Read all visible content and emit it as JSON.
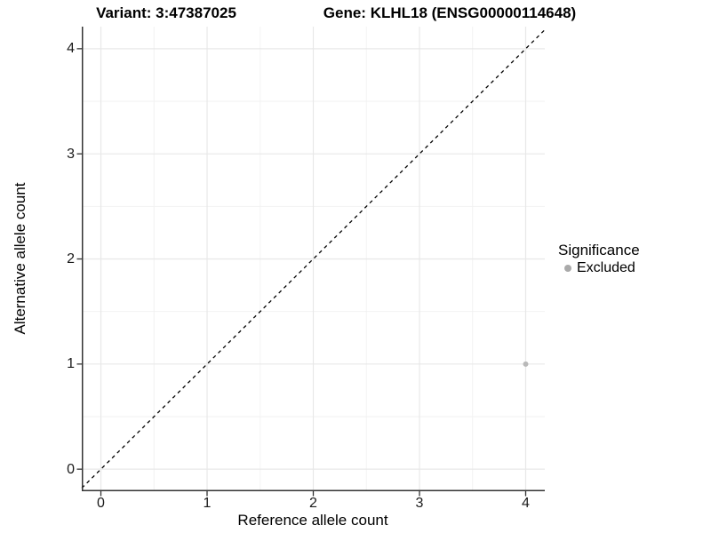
{
  "header": {
    "variant_title": "Variant: 3:47387025",
    "gene_title": "Gene: KLHL18 (ENSG00000114648)"
  },
  "axes": {
    "x_label": "Reference allele count",
    "y_label": "Alternative allele count"
  },
  "legend": {
    "title": "Significance",
    "items": [
      {
        "label": "Excluded",
        "color": "#aaaaaa",
        "marker": "circle"
      }
    ]
  },
  "colors": {
    "background": "#ffffff",
    "grid_major": "#e8e8e8",
    "grid_minor": "#f2f2f2",
    "axis_line": "#333333",
    "tick": "#333333",
    "reference_line": "#000000",
    "point": "#b9b9b9"
  },
  "chart_data": {
    "type": "scatter",
    "title": "Variant: 3:47387025    Gene: KLHL18 (ENSG00000114648)",
    "xlabel": "Reference allele count",
    "ylabel": "Alternative allele count",
    "xlim": [
      -0.18,
      4.18
    ],
    "ylim": [
      -0.21,
      4.21
    ],
    "x_ticks": [
      0,
      1,
      2,
      3,
      4
    ],
    "y_ticks": [
      0,
      1,
      2,
      3,
      4
    ],
    "x_minor_ticks": [
      0.5,
      1.5,
      2.5,
      3.5
    ],
    "y_minor_ticks": [
      0.5,
      1.5,
      2.5,
      3.5
    ],
    "grid": "major+minor",
    "legend_position": "right",
    "series": [
      {
        "name": "Excluded",
        "color": "#b9b9b9",
        "points": [
          {
            "x": 4,
            "y": 1
          }
        ]
      }
    ],
    "reference_line": {
      "slope": 1,
      "intercept": 0,
      "linetype": "dashed",
      "color": "#000000"
    }
  }
}
